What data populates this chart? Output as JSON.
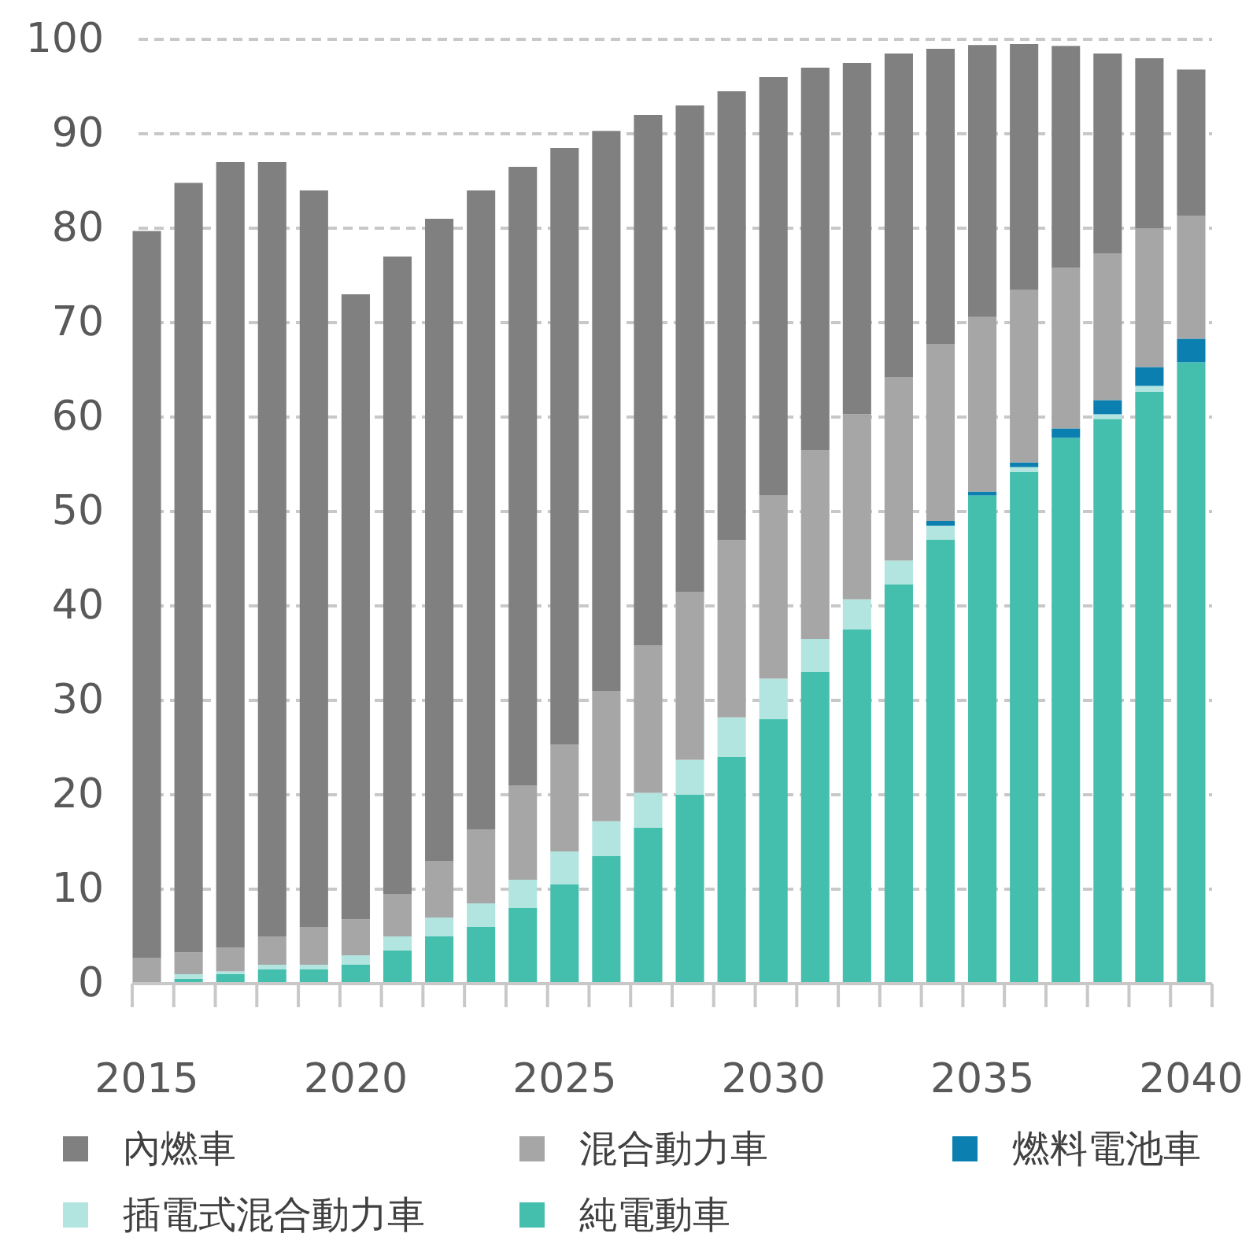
{
  "chart_data": {
    "type": "bar",
    "stacked": true,
    "categories": [
      "2015",
      null,
      null,
      null,
      null,
      "2020",
      null,
      null,
      null,
      null,
      "2025",
      null,
      null,
      null,
      null,
      "2030",
      null,
      null,
      null,
      null,
      "2035",
      null,
      null,
      null,
      null,
      "2040"
    ],
    "series": [
      {
        "name": "純電動車",
        "color": "#44bfad",
        "values": [
          0,
          0.5,
          1,
          1.5,
          1.5,
          2,
          3.5,
          5,
          6,
          8,
          10.5,
          13.5,
          16.5,
          20,
          24,
          28,
          33,
          37.5,
          42.3,
          47,
          51.7,
          54.2,
          57.8,
          59.8,
          62.7,
          65.8
        ]
      },
      {
        "name": "插電式混合動力車",
        "color": "#b2e5df",
        "values": [
          null,
          0.5,
          0.3,
          0.5,
          0.5,
          1,
          1.5,
          2,
          2.5,
          3,
          3.5,
          3.7,
          3.7,
          3.7,
          4.2,
          4.3,
          3.5,
          3.2,
          2.5,
          1.5,
          null,
          0.5,
          null,
          0.5,
          0.6,
          null
        ]
      },
      {
        "name": "燃料電池車",
        "color": "#0a7fb0",
        "values": [
          0,
          0,
          0,
          0,
          0,
          0,
          0,
          0,
          0,
          0,
          0,
          0,
          0,
          0,
          0,
          0,
          0,
          0,
          0,
          0.5,
          0.4,
          0.5,
          1,
          1.5,
          2,
          2.5
        ]
      },
      {
        "name": "混合動力車",
        "color": "#a6a6a6",
        "values": [
          2.7,
          2.3,
          2.5,
          3,
          4,
          3.8,
          4.5,
          6,
          7.8,
          10,
          11.3,
          13.8,
          15.6,
          17.8,
          18.8,
          19.4,
          20,
          19.6,
          19.4,
          18.7,
          18.5,
          18.3,
          17,
          15.5,
          14.7,
          13
        ]
      },
      {
        "name": "內燃車",
        "color": "#808080",
        "values": [
          77,
          81.5,
          83.2,
          82,
          78,
          66.2,
          67.5,
          68,
          67.7,
          65.5,
          63.2,
          59.3,
          56.2,
          51.5,
          47.5,
          44.3,
          40.5,
          37.2,
          34.3,
          31.3,
          28.8,
          26,
          23.5,
          21.2,
          18,
          15.5
        ]
      }
    ],
    "ylim": [
      0,
      100
    ],
    "yticks": [
      0,
      10,
      20,
      30,
      40,
      50,
      60,
      70,
      80,
      90,
      100
    ],
    "grid": "y",
    "legend": "bottom"
  }
}
